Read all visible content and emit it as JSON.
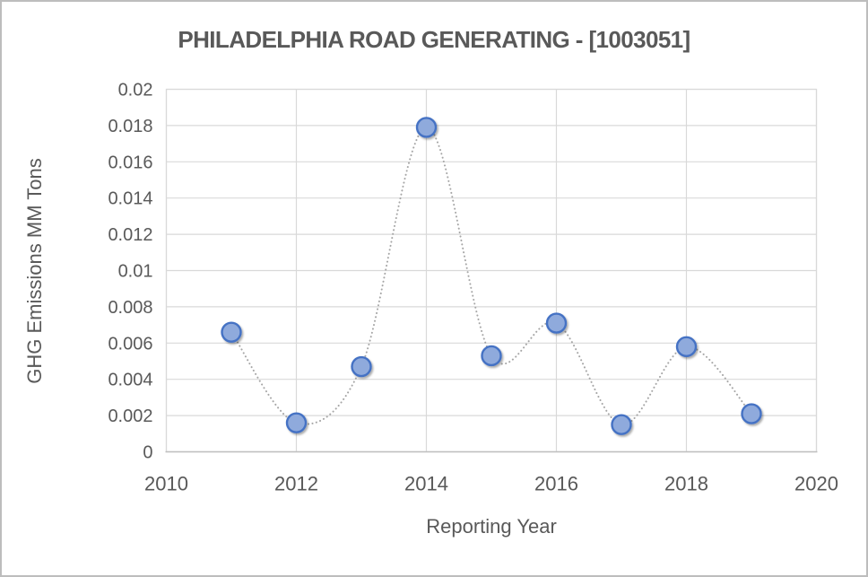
{
  "window": {
    "background": "#ffffff",
    "frame_border_color": "#bdbdbd"
  },
  "chart_data": {
    "type": "scatter",
    "line_style": "smooth-dotted",
    "title": "PHILADELPHIA ROAD GENERATING - [1003051]",
    "xlabel": "Reporting Year",
    "ylabel": "GHG Emissions MM Tons",
    "x": [
      2011,
      2012,
      2013,
      2014,
      2015,
      2016,
      2017,
      2018,
      2019
    ],
    "y": [
      0.0066,
      0.0016,
      0.0047,
      0.0179,
      0.0053,
      0.0071,
      0.0015,
      0.0058,
      0.0021
    ],
    "xlim": [
      2010,
      2020
    ],
    "ylim": [
      0,
      0.02
    ],
    "xticks": {
      "values": [
        2010,
        2012,
        2014,
        2016,
        2018,
        2020
      ],
      "labels": [
        "2010",
        "2012",
        "2014",
        "2016",
        "2018",
        "2020"
      ]
    },
    "yticks": {
      "values": [
        0,
        0.002,
        0.004,
        0.006,
        0.008,
        0.01,
        0.012,
        0.014,
        0.016,
        0.018,
        0.02
      ],
      "labels": [
        "0",
        "0.002",
        "0.004",
        "0.006",
        "0.008",
        "0.01",
        "0.012",
        "0.014",
        "0.016",
        "0.018",
        "0.02"
      ]
    },
    "grid": true,
    "legend": "none",
    "styles": {
      "grid_color": "#d9d9d9",
      "axis_line_color": "#bfbfbf",
      "axis_text_color": "#595959",
      "title_color": "#595959",
      "connector_color": "#a6a6a6",
      "marker_fill": "#8faadc",
      "marker_border": "#4472c4"
    }
  }
}
